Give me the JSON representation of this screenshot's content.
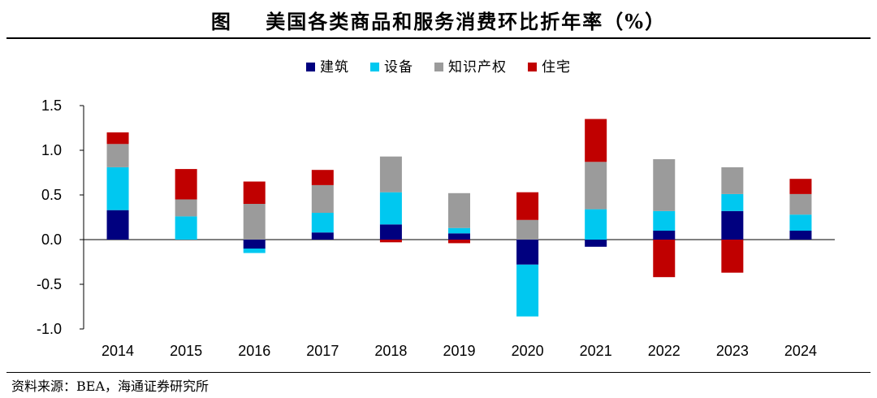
{
  "figure": {
    "title": "图    美国各类商品和服务消费环比折年率（%）",
    "source": "资料来源：BEA，海通证券研究所"
  },
  "chart_data": {
    "type": "bar",
    "stacked": true,
    "categories": [
      "2014",
      "2015",
      "2016",
      "2017",
      "2018",
      "2019",
      "2020",
      "2021",
      "2022",
      "2023",
      "2024"
    ],
    "series": [
      {
        "name": "建筑",
        "color": "#00007f",
        "values": [
          0.33,
          0.0,
          -0.1,
          0.08,
          0.17,
          0.07,
          -0.28,
          -0.08,
          0.1,
          0.32,
          0.1
        ]
      },
      {
        "name": "设备",
        "color": "#00c8f0",
        "values": [
          0.48,
          0.26,
          -0.05,
          0.22,
          0.36,
          0.06,
          -0.58,
          0.34,
          0.22,
          0.19,
          0.18
        ]
      },
      {
        "name": "知识产权",
        "color": "#9b9b9b",
        "values": [
          0.26,
          0.19,
          0.4,
          0.31,
          0.4,
          0.39,
          0.22,
          0.53,
          0.58,
          0.3,
          0.23
        ]
      },
      {
        "name": "住宅",
        "color": "#c00000",
        "values": [
          0.13,
          0.34,
          0.25,
          0.17,
          -0.03,
          -0.04,
          0.31,
          0.48,
          -0.42,
          -0.37,
          0.17
        ]
      }
    ],
    "ylim": [
      -1.0,
      1.5
    ],
    "yticks": [
      "-1.0",
      "-0.5",
      "0.0",
      "0.5",
      "1.0",
      "1.5"
    ],
    "xlabel": "",
    "ylabel": "",
    "legend_position": "top-center",
    "grid": false
  }
}
